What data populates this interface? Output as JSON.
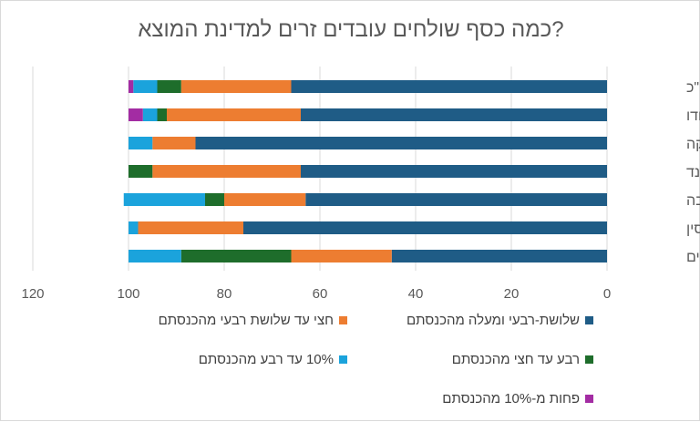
{
  "chart_data": {
    "type": "bar",
    "orientation": "horizontal-stacked",
    "title": "כמה כסף שולחים עובדים זרים למדינת המוצא?",
    "xlabel": "",
    "ylabel": "",
    "xlim": [
      0,
      120
    ],
    "x_reversed": true,
    "x_ticks": [
      "0",
      "20",
      "40",
      "60",
      "80",
      "100",
      "120"
    ],
    "grid": "vertical",
    "legend_position": "bottom",
    "categories": [
      "סה\"כ",
      "הודו",
      "סרי לנקה",
      "תאילנד",
      "מולדובה",
      "סין",
      "פיליפינים"
    ],
    "series": [
      {
        "name": "שלושת-רבעי ומעלה מהכנסתם",
        "color": "#1f5c86",
        "values": [
          66,
          64,
          86,
          64,
          63,
          76,
          45
        ]
      },
      {
        "name": "חצי עד שלושת רבעי מהכנסתם",
        "color": "#ed7d31",
        "values": [
          23,
          28,
          9,
          31,
          17,
          22,
          21
        ]
      },
      {
        "name": "רבע עד חצי מהכנסתם",
        "color": "#1e6d2b",
        "values": [
          5,
          2,
          0,
          5,
          4,
          0,
          23
        ]
      },
      {
        "name": "10% עד רבע מהכנסתם",
        "color": "#1ba3dc",
        "values": [
          5,
          3,
          5,
          0,
          17,
          2,
          11
        ]
      },
      {
        "name": "פחות מ-10% מהכנסתם",
        "color": "#a32ca3",
        "values": [
          1,
          3,
          0,
          0,
          0,
          0,
          0
        ]
      }
    ]
  }
}
